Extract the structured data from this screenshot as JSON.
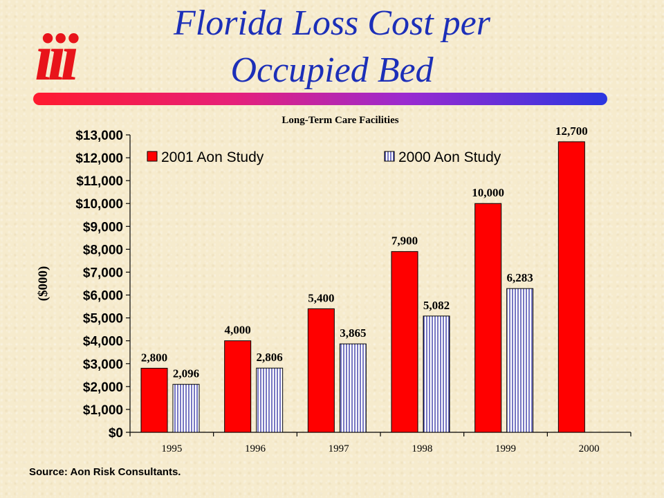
{
  "logo": {
    "text": "iii"
  },
  "title": {
    "line1": "Florida Loss Cost per",
    "line2": "Occupied Bed"
  },
  "source": "Source:  Aon Risk Consultants.",
  "colors": {
    "title": "#1c2fb8",
    "logo": "#e8141b",
    "series_2001": "#ff0000",
    "series_2000_fill": "#ffffff",
    "series_2000_hatch": "#1a1a9a"
  },
  "chart_data": {
    "type": "bar",
    "title": "Long-Term Care Facilities",
    "ylabel": "($000)",
    "xlabel": "",
    "categories": [
      "1995",
      "1996",
      "1997",
      "1998",
      "1999",
      "2000"
    ],
    "series": [
      {
        "name": "2001 Aon Study",
        "values": [
          2800,
          4000,
          5400,
          7900,
          10000,
          12700
        ],
        "labels": [
          "2,800",
          "4,000",
          "5,400",
          "7,900",
          "10,000",
          "12,700"
        ]
      },
      {
        "name": "2000 Aon Study",
        "values": [
          2096,
          2806,
          3865,
          5082,
          6283,
          null
        ],
        "labels": [
          "2,096",
          "2,806",
          "3,865",
          "5,082",
          "6,283",
          null
        ]
      }
    ],
    "ylim": [
      0,
      13000
    ],
    "yticks": [
      0,
      1000,
      2000,
      3000,
      4000,
      5000,
      6000,
      7000,
      8000,
      9000,
      10000,
      11000,
      12000,
      13000
    ],
    "ytick_labels": [
      "$0",
      "$1,000",
      "$2,000",
      "$3,000",
      "$4,000",
      "$5,000",
      "$6,000",
      "$7,000",
      "$8,000",
      "$9,000",
      "$10,000",
      "$11,000",
      "$12,000",
      "$13,000"
    ],
    "legend_position": "top",
    "grid": false
  }
}
